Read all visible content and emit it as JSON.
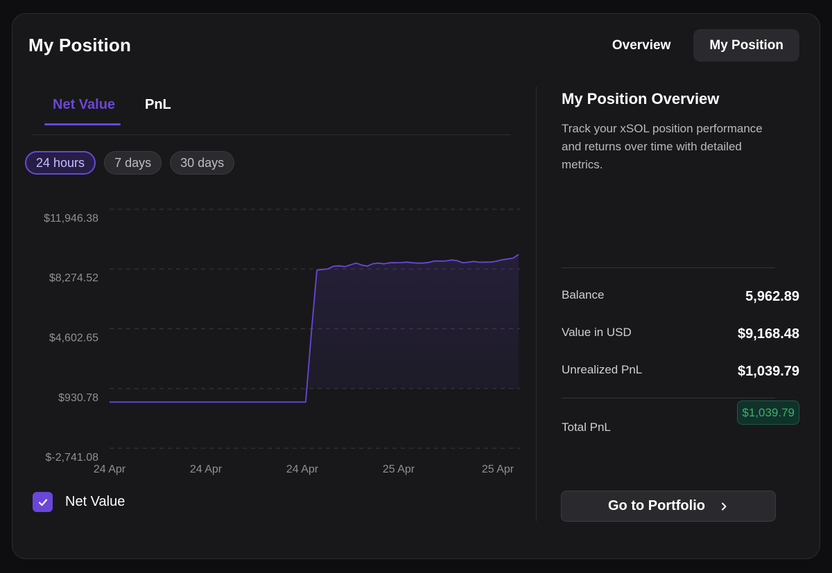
{
  "card": {
    "title": "My Position"
  },
  "view_tabs": [
    {
      "label": "Overview",
      "active": false
    },
    {
      "label": "My Position",
      "active": true
    }
  ],
  "metric_tabs": [
    {
      "label": "Net Value",
      "active": true
    },
    {
      "label": "PnL",
      "active": false
    }
  ],
  "range_pills": [
    {
      "label": "24 hours",
      "active": true
    },
    {
      "label": "7 days",
      "active": false
    },
    {
      "label": "30 days",
      "active": false
    }
  ],
  "legend": {
    "label": "Net Value",
    "checked": true,
    "icon": "check-icon"
  },
  "overview": {
    "title": "My Position Overview",
    "description": "Track your xSOL position performance and returns over time with detailed metrics.",
    "balance_label": "Balance",
    "balance_value": "5,962.89",
    "usd_label": "Value in USD",
    "usd_value": "$9,168.48",
    "unrealized_label": "Unrealized PnL",
    "unrealized_value": "$1,039.79",
    "total_label": "Total PnL",
    "total_value": "$1,039.79",
    "button_label": "Go to Portfolio",
    "button_icon": "chevron-right-icon"
  },
  "colors": {
    "accent": "#6a47d9",
    "positive": "#3fae6b",
    "background": "#18181a"
  },
  "chart_data": {
    "type": "area",
    "series": [
      {
        "name": "Net Value",
        "values": [
          100,
          100,
          100,
          100,
          100,
          100,
          100,
          100,
          100,
          100,
          100,
          100,
          100,
          100,
          100,
          100,
          100,
          100,
          100,
          100,
          100,
          100,
          100,
          100,
          100,
          100,
          100,
          100,
          100,
          100,
          100,
          100,
          100,
          100,
          100,
          100,
          4300,
          8200,
          8250,
          8280,
          8450,
          8470,
          8420,
          8530,
          8640,
          8520,
          8450,
          8600,
          8640,
          8590,
          8660,
          8660,
          8670,
          8700,
          8660,
          8640,
          8640,
          8680,
          8770,
          8760,
          8770,
          8830,
          8790,
          8660,
          8690,
          8740,
          8690,
          8700,
          8700,
          8750,
          8840,
          8890,
          8940,
          9168.48
        ]
      }
    ],
    "x_tick_labels": [
      "24 Apr",
      "24 Apr",
      "24 Apr",
      "25 Apr",
      "25 Apr"
    ],
    "y_tick_labels": [
      "$11,946.38",
      "$8,274.52",
      "$4,602.65",
      "$930.78",
      "$-2,741.08"
    ],
    "y_ticks": [
      11946.38,
      8274.52,
      4602.65,
      930.78,
      -2741.08
    ],
    "ylim": [
      -2741.08,
      11946.38
    ],
    "grid": true,
    "legend_placement": "bottom-left"
  }
}
